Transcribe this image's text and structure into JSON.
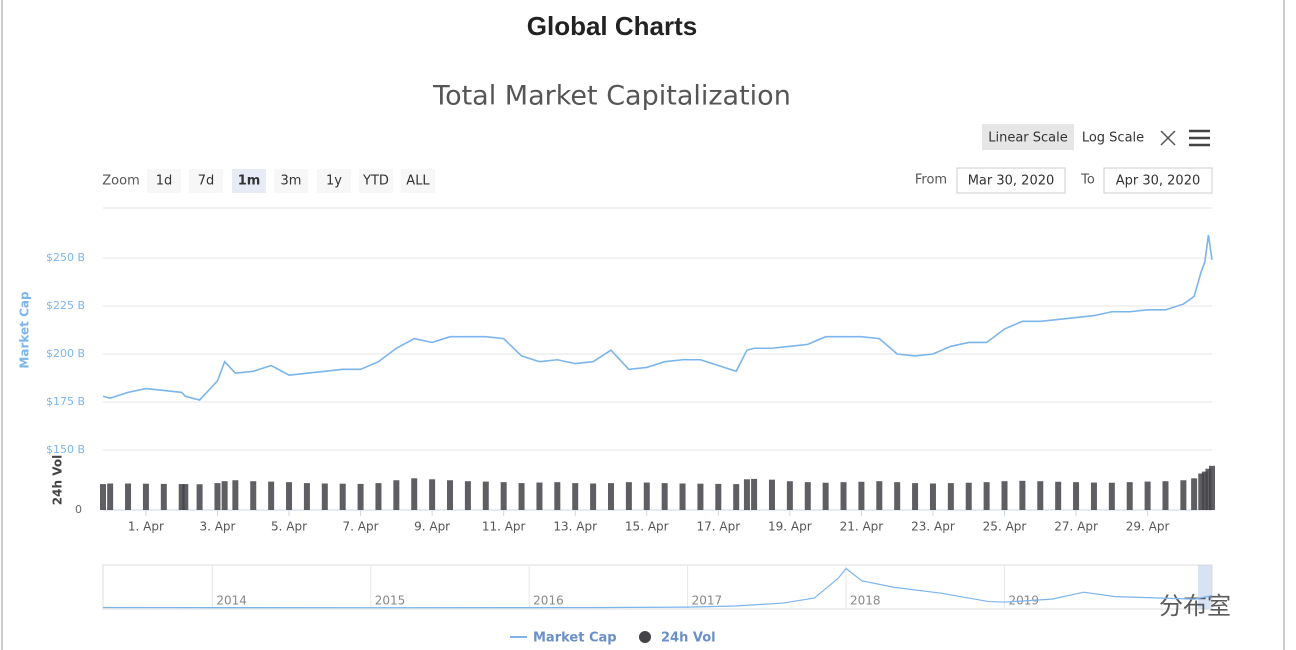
{
  "ui": {
    "heading": "Global Charts",
    "scale_buttons": [
      "Linear Scale",
      "Log Scale"
    ],
    "scale_selected": 0,
    "zoom_label": "Zoom",
    "zoom_buttons": [
      "1d",
      "7d",
      "1m",
      "3m",
      "1y",
      "YTD",
      "ALL"
    ],
    "zoom_selected": 2,
    "from_label": "From",
    "from_value": "Mar 30, 2020",
    "to_label": "To",
    "to_value": "Apr 30, 2020",
    "watermark": "分布室"
  },
  "chart_data": [
    {
      "type": "line",
      "title": "Total Market Capitalization",
      "ylabel": "Market Cap",
      "y2label": "24h Vol",
      "x": [
        -1.2,
        -1,
        -0.5,
        0,
        0.5,
        1,
        1.1,
        1.5,
        2,
        2.2,
        2.5,
        3,
        3.5,
        4,
        4.5,
        5,
        5.5,
        6,
        6.5,
        7,
        7.5,
        8,
        8.5,
        9,
        9.5,
        10,
        10.5,
        11,
        11.5,
        12,
        12.5,
        13,
        13.5,
        14,
        14.5,
        15,
        15.5,
        16,
        16.5,
        16.8,
        17,
        17.5,
        18,
        18.5,
        19,
        19.5,
        20,
        20.5,
        21,
        21.5,
        22,
        22.5,
        23,
        23.5,
        24,
        24.5,
        25,
        25.5,
        26,
        26.5,
        27,
        27.5,
        28,
        28.5,
        29,
        29.3,
        29.5,
        29.6,
        29.7,
        29.8
      ],
      "series": [
        {
          "name": "Market Cap",
          "color": "#7cb5ec",
          "values": [
            178,
            177,
            180,
            182,
            181,
            180,
            178,
            176,
            186,
            196,
            190,
            191,
            194,
            189,
            190,
            191,
            192,
            192,
            196,
            203,
            208,
            206,
            209,
            209,
            209,
            208,
            199,
            196,
            197,
            195,
            196,
            202,
            192,
            193,
            196,
            197,
            197,
            194,
            191,
            202,
            203,
            203,
            204,
            205,
            209,
            209,
            209,
            208,
            200,
            199,
            200,
            204,
            206,
            206,
            213,
            217,
            217,
            218,
            219,
            220,
            222,
            222,
            223,
            223,
            226,
            230,
            243,
            248,
            262,
            249
          ]
        },
        {
          "name": "24h Vol",
          "color": "#434348",
          "type": "bar",
          "axis": "y2",
          "values": [
            135,
            138,
            138,
            137,
            136,
            135,
            135,
            134,
            140,
            150,
            155,
            150,
            148,
            145,
            140,
            138,
            137,
            136,
            140,
            155,
            165,
            160,
            155,
            150,
            148,
            145,
            140,
            143,
            145,
            140,
            138,
            140,
            145,
            143,
            140,
            138,
            137,
            136,
            135,
            160,
            162,
            158,
            150,
            145,
            142,
            145,
            147,
            150,
            145,
            140,
            138,
            140,
            142,
            145,
            150,
            152,
            150,
            147,
            145,
            143,
            142,
            145,
            148,
            150,
            155,
            165,
            190,
            200,
            215,
            230
          ]
        }
      ],
      "xlim": [
        -1.2,
        29.8
      ],
      "xticks": [
        {
          "value": 0,
          "label": "1. Apr"
        },
        {
          "value": 2,
          "label": "3. Apr"
        },
        {
          "value": 4,
          "label": "5. Apr"
        },
        {
          "value": 6,
          "label": "7. Apr"
        },
        {
          "value": 8,
          "label": "9. Apr"
        },
        {
          "value": 10,
          "label": "11. Apr"
        },
        {
          "value": 12,
          "label": "13. Apr"
        },
        {
          "value": 14,
          "label": "15. Apr"
        },
        {
          "value": 16,
          "label": "17. Apr"
        },
        {
          "value": 18,
          "label": "19. Apr"
        },
        {
          "value": 20,
          "label": "21. Apr"
        },
        {
          "value": 22,
          "label": "23. Apr"
        },
        {
          "value": 24,
          "label": "25. Apr"
        },
        {
          "value": 26,
          "label": "27. Apr"
        },
        {
          "value": 28,
          "label": "29. Apr"
        }
      ],
      "ylim": [
        150,
        275
      ],
      "yticks": [
        {
          "value": 150,
          "label": "$150 B"
        },
        {
          "value": 175,
          "label": "$175 B"
        },
        {
          "value": 200,
          "label": "$200 B"
        },
        {
          "value": 225,
          "label": "$225 B"
        },
        {
          "value": 250,
          "label": "$250 B"
        }
      ],
      "y2lim": [
        0,
        250
      ],
      "y2ticks": [
        0
      ],
      "grid": true
    },
    {
      "type": "area",
      "color": "#7cb5ec",
      "x": [
        2013.31,
        2014,
        2015,
        2016,
        2016.5,
        2017,
        2017.3,
        2017.6,
        2017.8,
        2017.95,
        2018.0,
        2018.1,
        2018.3,
        2018.6,
        2018.9,
        2019.0,
        2019.3,
        2019.5,
        2019.7,
        2020.0,
        2020.2,
        2020.31
      ],
      "values": [
        10,
        8,
        6,
        7,
        10,
        18,
        40,
        100,
        200,
        600,
        800,
        550,
        420,
        300,
        130,
        120,
        180,
        320,
        230,
        200,
        180,
        250
      ],
      "xlim": [
        2013.31,
        2020.31
      ],
      "xticks": [
        2014,
        2015,
        2016,
        2017,
        2018,
        2019
      ],
      "ylim": [
        0,
        850
      ]
    }
  ]
}
